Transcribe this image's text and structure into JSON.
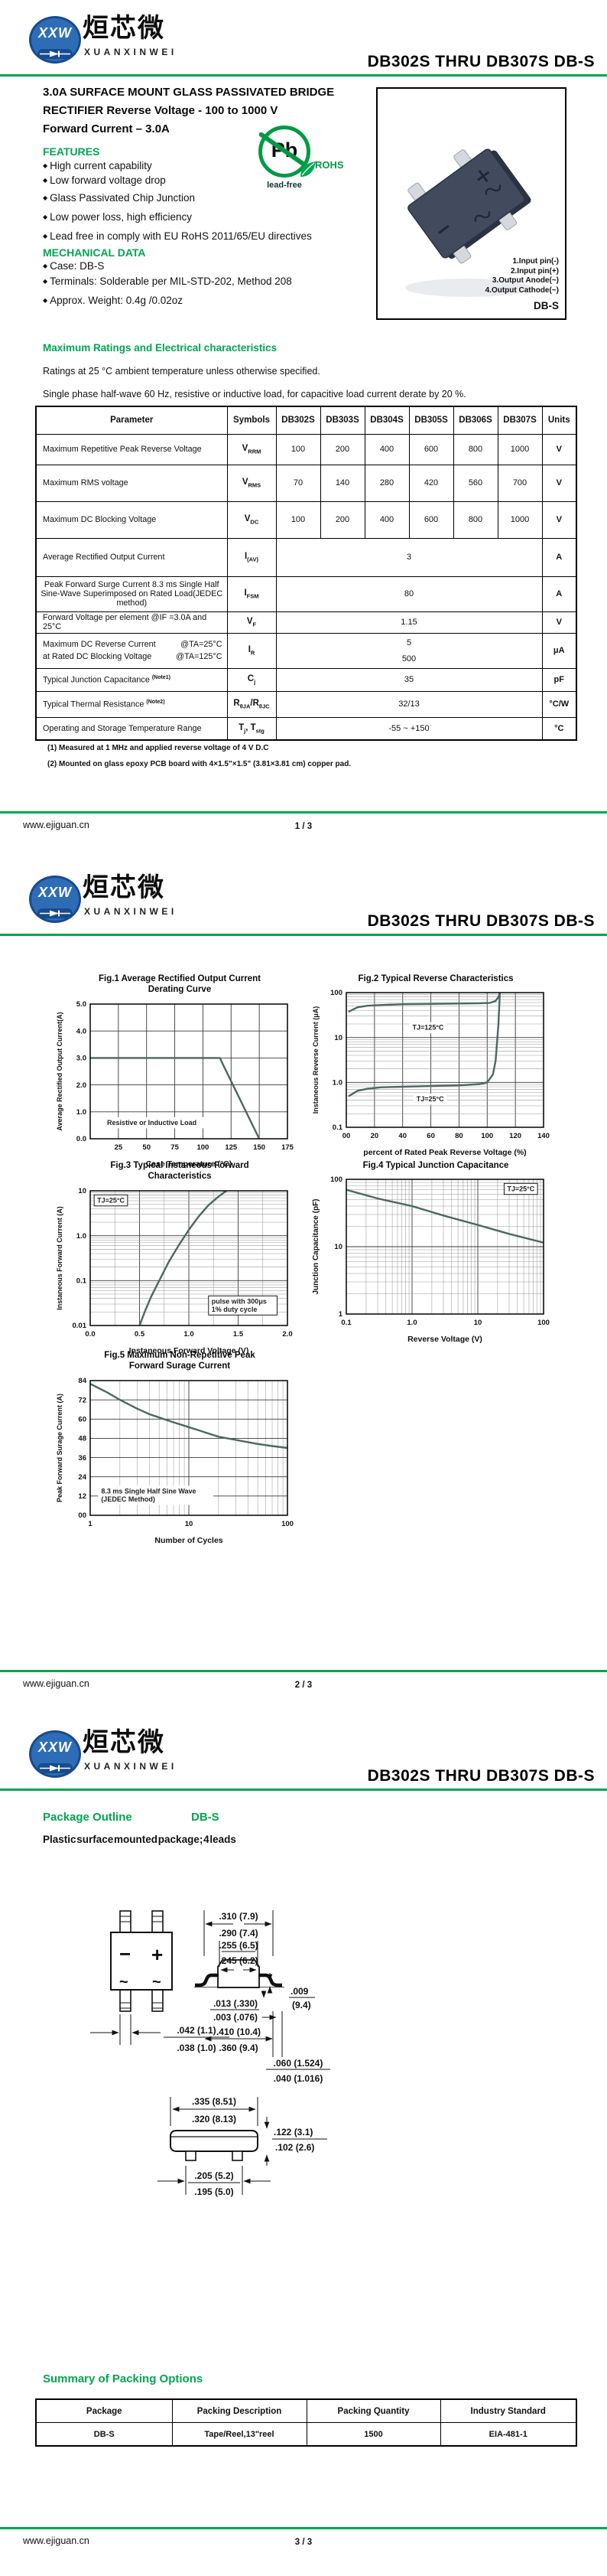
{
  "brand": {
    "logo_abbr": "XXW",
    "logo_cn": "烜芯微",
    "logo_en": "XUANXINWEI",
    "doc_title": "DB302S THRU DB307S  DB-S"
  },
  "ui": {
    "bullet": "◆"
  },
  "footer": {
    "site": "www.ejiguan.cn",
    "pages": [
      "1 / 3",
      "2 / 3",
      "3 / 3"
    ]
  },
  "page1": {
    "desc1": "3.0A SURFACE MOUNT GLASS PASSIVATED BRIDGE",
    "desc2": "RECTIFIER Reverse Voltage - 100 to 1000 V",
    "desc3": "Forward Current – 3.0A",
    "features_heading": "FEATURES",
    "features": [
      "High current capability",
      "Low forward voltage drop",
      "Glass Passivated Chip Junction",
      "Low power loss, high efficiency",
      "Lead free in comply with EU RoHS 2011/65/EU directives"
    ],
    "mech_heading": "MECHANICAL DATA",
    "mech": [
      "Case: DB-S",
      "Terminals: Solderable per MIL-STD-202,  Method 208",
      "Approx. Weight: 0.4g /0.02oz"
    ],
    "pb": {
      "pb": "Pb",
      "lead_free": "lead-free",
      "rohs": "ROHS"
    },
    "photo": {
      "pins": [
        "1.Input pin(-)",
        "2.Input pin(+)",
        "3.Output Anode(~)",
        "4.Output Cathode(~)"
      ],
      "case": "DB-S"
    },
    "ratings_heading": "Maximum Ratings and Electrical characteristics",
    "ratings_sub1": "Ratings at 25 °C ambient temperature unless otherwise specified.",
    "ratings_sub2": "Single phase half-wave 60 Hz, resistive or inductive load, for capacitive load current derate by 20 %.",
    "table": {
      "headers": [
        "Parameter",
        "Symbols",
        "DB302S",
        "DB303S",
        "DB304S",
        "DB305S",
        "DB306S",
        "DB307S",
        "Units"
      ],
      "r0": {
        "param": "Maximum Repetitive Peak Reverse Voltage",
        "sym_b": "V",
        "sym_s": "RRM",
        "v": [
          "100",
          "200",
          "400",
          "600",
          "800",
          "1000"
        ],
        "unit": "V"
      },
      "r1": {
        "param": "Maximum RMS voltage",
        "sym_b": "V",
        "sym_s": "RMS",
        "v": [
          "70",
          "140",
          "280",
          "420",
          "560",
          "700"
        ],
        "unit": "V"
      },
      "r2": {
        "param": "Maximum DC Blocking Voltage",
        "sym_b": "V",
        "sym_s": "DC",
        "v": [
          "100",
          "200",
          "400",
          "600",
          "800",
          "1000"
        ],
        "unit": "V"
      },
      "r3": {
        "param": "Average Rectified Output Current",
        "sym_b": "I",
        "sym_s": "(AV)",
        "v": "3",
        "unit": "A"
      },
      "r4": {
        "param": "Peak Forward Surge Current 8.3 ms Single Half Sine-Wave Superimposed on Rated Load(JEDEC method)",
        "sym_b": "I",
        "sym_s": "FSM",
        "v": "80",
        "unit": "A"
      },
      "r5": {
        "param": "Forward Voltage per element  @IF =3.0A and 25°C",
        "sym_b": "V",
        "sym_s": "F",
        "v": "1.15",
        "unit": "V"
      },
      "r6": {
        "param1": "Maximum DC Reverse Current",
        "cond1": "@TA=25°C",
        "param2": "at Rated DC Blocking Voltage",
        "cond2": "@TA=125°C",
        "sym_b": "I",
        "sym_s": "R",
        "v1": "5",
        "v2": "500",
        "unit": "μA"
      },
      "r7": {
        "param": "Typical Junction Capacitance",
        "note": "(Note1)",
        "sym_b": "C",
        "sym_s": "j",
        "v": "35",
        "unit": "pF"
      },
      "r8": {
        "param": "Typical Thermal Resistance",
        "note": "(Note2)",
        "sym_b": "R",
        "sym_s": "θJA",
        "sep": "/",
        "sym2_b": "R",
        "sym2_s": "θJC",
        "v": "32/13",
        "unit": "°C/W"
      },
      "r9": {
        "param": "Operating and Storage Temperature Range",
        "sym_b": "T",
        "sym_s": "j",
        "sep": ", ",
        "sym2_b": "T",
        "sym2_s": "stg",
        "v": "-55 ~ +150",
        "unit": "°C"
      }
    },
    "notes": [
      "(1) Measured at 1 MHz and applied reverse voltage of 4 V D.C",
      "(2) Mounted on glass epoxy PCB board with 4×1.5\"×1.5\"  (3.81×3.81 cm)   copper pad."
    ]
  },
  "chart_data": [
    {
      "id": "fig1",
      "type": "line",
      "title": "Fig.1  Average Rectified Output Current\nDerating Curve",
      "xlabel": "Case Temperature (°C)",
      "ylabel": "Average Rectified Output Current(A)",
      "xscale": "linear",
      "xlim": [
        0,
        175
      ],
      "xticks": [
        25,
        50,
        75,
        100,
        125,
        150,
        175
      ],
      "yscale": "linear",
      "ylim": [
        0,
        5
      ],
      "yticks": [
        0,
        1,
        2,
        3,
        4,
        5
      ],
      "ytick_labels": [
        "0.0",
        "1.0",
        "2.0",
        "3.0",
        "4.0",
        "5.0"
      ],
      "grid": true,
      "series": [
        {
          "name": "Resistive or Inductive Load",
          "points": [
            [
              0,
              3
            ],
            [
              115,
              3
            ],
            [
              150,
              0
            ]
          ]
        }
      ],
      "annotations": [
        {
          "text": "Resistive or Inductive Load",
          "fx": 0.07,
          "fy": 0.84,
          "box": false
        }
      ]
    },
    {
      "id": "fig2",
      "type": "line",
      "title": "Fig.2  Typical Reverse Characteristics",
      "xlabel": "percent of Rated Peak Reverse Voltage (%)",
      "ylabel": "Instaneous Reverse Current (μA)",
      "xscale": "linear",
      "xlim": [
        0,
        140
      ],
      "xticks": [
        0,
        20,
        40,
        60,
        80,
        100,
        120,
        140
      ],
      "xtick_labels": [
        "00",
        "20",
        "40",
        "60",
        "80",
        "100",
        "120",
        "140"
      ],
      "yscale": "log",
      "ylim": [
        0.1,
        100
      ],
      "yticks": [
        0.1,
        1,
        10,
        100
      ],
      "ytick_labels": [
        "0.1",
        "1.0",
        "10",
        "100"
      ],
      "grid": true,
      "series": [
        {
          "name": "TJ=125°C",
          "points": [
            [
              2,
              38
            ],
            [
              8,
              47
            ],
            [
              15,
              51
            ],
            [
              25,
              53
            ],
            [
              40,
              55
            ],
            [
              60,
              56
            ],
            [
              80,
              57
            ],
            [
              95,
              58
            ],
            [
              102,
              59
            ],
            [
              106,
              65
            ],
            [
              108,
              80
            ],
            [
              109,
              100
            ]
          ]
        },
        {
          "name": "TJ=25°C",
          "points": [
            [
              2,
              0.5
            ],
            [
              8,
              0.65
            ],
            [
              15,
              0.72
            ],
            [
              25,
              0.78
            ],
            [
              40,
              0.8
            ],
            [
              60,
              0.83
            ],
            [
              80,
              0.86
            ],
            [
              95,
              0.92
            ],
            [
              100,
              1.0
            ],
            [
              104,
              1.5
            ],
            [
              106,
              3
            ],
            [
              108,
              20
            ],
            [
              109,
              100
            ]
          ]
        }
      ],
      "annotations": [
        {
          "text": "TJ=125°C",
          "fx": 0.32,
          "fy": 0.22,
          "box": false
        },
        {
          "text": "TJ=25°C",
          "fx": 0.34,
          "fy": 0.75,
          "box": false
        }
      ]
    },
    {
      "id": "fig3",
      "type": "line",
      "title": "Fig.3  Typical Instaneous Forward\nCharacteristics",
      "xlabel": "Instaneous Forward Voltage (V)",
      "ylabel": "Instaneous Forward Current (A)",
      "xscale": "linear",
      "xlim": [
        0,
        2
      ],
      "xminor": 0.25,
      "xticks": [
        0,
        0.5,
        1,
        1.5,
        2
      ],
      "xtick_labels": [
        "0.0",
        "0.5",
        "1.0",
        "1.5",
        "2.0"
      ],
      "yscale": "log",
      "ylim": [
        0.01,
        10
      ],
      "yticks": [
        0.01,
        0.1,
        1,
        10
      ],
      "ytick_labels": [
        "0.01",
        "0.1",
        "1.0",
        "10"
      ],
      "grid": true,
      "series": [
        {
          "name": "TJ=25°C",
          "points": [
            [
              0.5,
              0.01
            ],
            [
              0.56,
              0.022
            ],
            [
              0.62,
              0.045
            ],
            [
              0.7,
              0.1
            ],
            [
              0.8,
              0.27
            ],
            [
              0.9,
              0.62
            ],
            [
              1.0,
              1.35
            ],
            [
              1.1,
              2.7
            ],
            [
              1.2,
              4.8
            ],
            [
              1.3,
              7.4
            ],
            [
              1.38,
              10
            ]
          ]
        }
      ],
      "annotations": [
        {
          "text": "TJ=25°C",
          "fx": 0.02,
          "fy": 0.03,
          "box": true
        },
        {
          "text": "pulse with 300μs\n1% duty cycle",
          "fx": 0.6,
          "fy": 0.78,
          "box": true
        }
      ]
    },
    {
      "id": "fig4",
      "type": "line",
      "title": "Fig.4  Typical Junction Capacitance",
      "xlabel": "Reverse  Voltage (V)",
      "ylabel": "Junction Capacitance (pF)",
      "xscale": "log",
      "xlim": [
        0.1,
        100
      ],
      "xticks": [
        0.1,
        1,
        10,
        100
      ],
      "xtick_labels": [
        "0.1",
        "1.0",
        "10",
        "100"
      ],
      "yscale": "log",
      "ylim": [
        1,
        100
      ],
      "yticks": [
        1,
        10,
        100
      ],
      "ytick_labels": [
        "1",
        "10",
        "100"
      ],
      "grid": true,
      "series": [
        {
          "name": "Cj",
          "points": [
            [
              0.1,
              70
            ],
            [
              0.3,
              52
            ],
            [
              1,
              40
            ],
            [
              3,
              29
            ],
            [
              10,
              21
            ],
            [
              30,
              15.5
            ],
            [
              100,
              11.5
            ]
          ]
        }
      ],
      "annotations": [
        {
          "text": "TJ=25°C",
          "fx": 0.8,
          "fy": 0.03,
          "box": true
        }
      ]
    },
    {
      "id": "fig5",
      "type": "line",
      "title": "Fig.5  Maximum Non-Repetitive Peak\nForward Surage Current",
      "xlabel": "Number of Cycles",
      "ylabel": "Peak Forward Surage Current (A)",
      "xscale": "log",
      "xlim": [
        1,
        100
      ],
      "xticks": [
        1,
        10,
        100
      ],
      "xtick_labels": [
        "1",
        "10",
        "100"
      ],
      "yscale": "linear",
      "ylim": [
        0,
        84
      ],
      "yticks": [
        0,
        12,
        24,
        36,
        48,
        60,
        72,
        84
      ],
      "ytick_labels": [
        "00",
        "12",
        "24",
        "36",
        "48",
        "60",
        "72",
        "84"
      ],
      "grid": true,
      "series": [
        {
          "name": "8.3 ms Single Half Sine Wave (JEDEC Method)",
          "points": [
            [
              1,
              82
            ],
            [
              1.5,
              76.5
            ],
            [
              2,
              72
            ],
            [
              3,
              66.5
            ],
            [
              4,
              63
            ],
            [
              5,
              61
            ],
            [
              7,
              58
            ],
            [
              10,
              55
            ],
            [
              15,
              51.5
            ],
            [
              20,
              49
            ],
            [
              30,
              47
            ],
            [
              50,
              44.5
            ],
            [
              70,
              43.2
            ],
            [
              100,
              42
            ]
          ]
        }
      ],
      "annotations": [
        {
          "text": "8.3 ms Single Half Sine Wave\n(JEDEC Method)",
          "fx": 0.04,
          "fy": 0.78,
          "box": false
        }
      ]
    }
  ],
  "page3": {
    "outline_heading": "Package Outline",
    "outline_pkg": "DB-S",
    "outline_sub": "Plastic surface mounted package; 4 leads",
    "dims": {
      "d1a": ".310 (7.9)",
      "d1b": ".290 (7.4)",
      "d2a": ".255 (6.5)",
      "d2b": ".245 (6.2)",
      "d3a": ".009",
      "d3b": "(9.4)",
      "d4a": ".013 (.330)",
      "d4b": ".003 (.076)",
      "d5a": ".410 (10.4)",
      "d5b": ".360 (9.4)",
      "d6a": ".060 (1.524)",
      "d6b": ".040 (1.016)",
      "d7a": ".042 (1.1)",
      "d7b": ".038 (1.0)",
      "d8a": ".335 (8.51)",
      "d8b": ".320 (8.13)",
      "d9a": ".122 (3.1)",
      "d9b": ".102 (2.6)",
      "d10a": ".205 (5.2)",
      "d10b": ".195 (5.0)",
      "plus": "+",
      "minus": "−",
      "ac": "~"
    },
    "packing_heading": "Summary of Packing Options",
    "packing": {
      "headers": [
        "Package",
        "Packing Description",
        "Packing Quantity",
        "Industry Standard"
      ],
      "row": [
        "DB-S",
        "Tape/Reel,13\"reel",
        "1500",
        "EIA-481-1"
      ]
    }
  }
}
